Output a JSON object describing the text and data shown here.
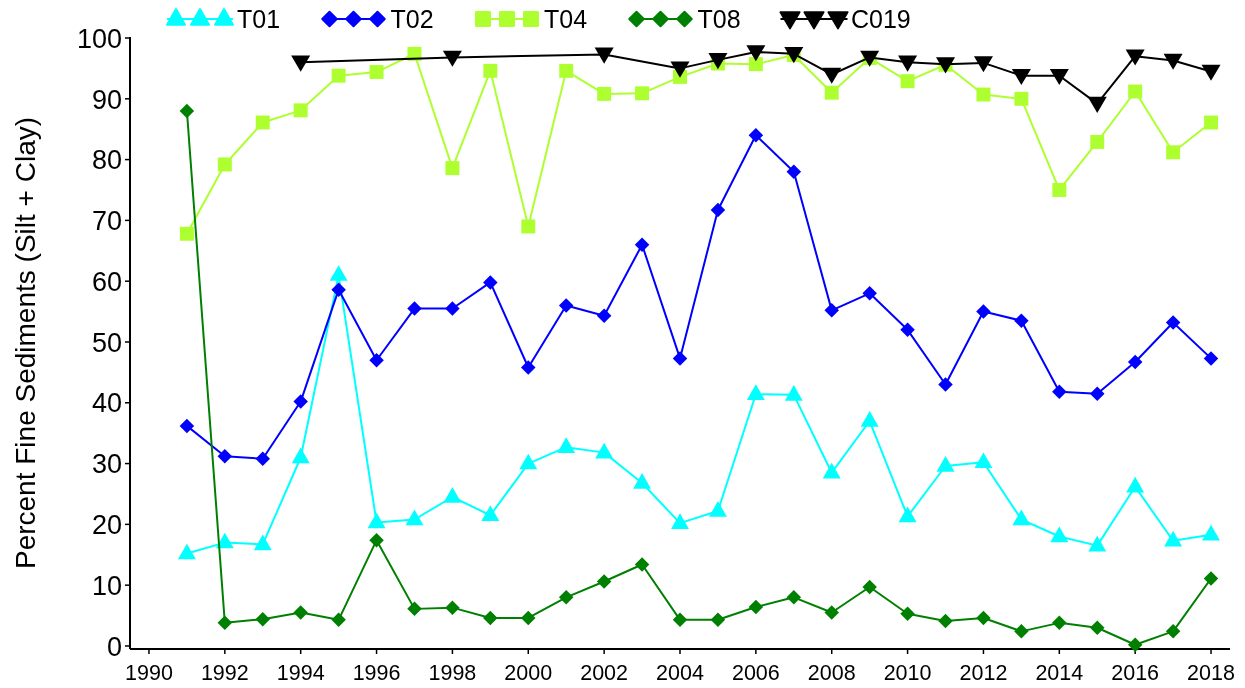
{
  "chart_data": {
    "type": "line",
    "ylabel": "Percent Fine Sediments (Silt + Clay)",
    "x": [
      1991,
      1992,
      1993,
      1994,
      1995,
      1996,
      1997,
      1998,
      1999,
      2000,
      2001,
      2002,
      2003,
      2004,
      2005,
      2006,
      2007,
      2008,
      2009,
      2010,
      2011,
      2012,
      2013,
      2014,
      2015,
      2016,
      2017,
      2018
    ],
    "series": [
      {
        "name": "T01",
        "color": "#00ffff",
        "marker": "triangle",
        "values": [
          15.2,
          17,
          16.7,
          31,
          61,
          20.3,
          20.8,
          24.5,
          21.5,
          30,
          32.7,
          31.8,
          26.8,
          20.2,
          22.2,
          41.4,
          41.3,
          28.5,
          37,
          21.3,
          29.6,
          30.2,
          20.8,
          18,
          16.5,
          26.2,
          17.3,
          18.3
        ]
      },
      {
        "name": "T02",
        "color": "#0000ff",
        "marker": "diamond",
        "values": [
          36.2,
          31.2,
          30.8,
          40.2,
          58.6,
          47,
          55.5,
          55.5,
          59.8,
          45.8,
          56,
          54.3,
          66,
          47.3,
          71.7,
          84,
          78,
          55.2,
          58,
          52,
          43,
          55,
          53.5,
          41.8,
          41.5,
          46.7,
          53.2,
          47.3
        ]
      },
      {
        "name": "T04",
        "color": "#adff2f",
        "marker": "square",
        "values": [
          67.8,
          79.2,
          86.1,
          88.1,
          93.8,
          94.4,
          97.4,
          78.6,
          94.6,
          69,
          94.6,
          90.8,
          90.9,
          93.6,
          95.8,
          95.7,
          97.2,
          91,
          96.7,
          92.9,
          95.6,
          90.7,
          90,
          75,
          82.9,
          91.2,
          81.2,
          86.1
        ]
      },
      {
        "name": "T08",
        "color": "#008000",
        "marker": "diamond",
        "values": [
          88,
          3.8,
          4.4,
          5.5,
          4.3,
          17.4,
          6.1,
          6.3,
          4.6,
          4.6,
          8,
          10.6,
          13.4,
          4.3,
          4.3,
          6.4,
          8,
          5.5,
          9.7,
          5.3,
          4.1,
          4.6,
          2.4,
          3.8,
          3,
          0.2,
          2.4,
          11.1
        ]
      },
      {
        "name": "C019",
        "color": "#000000",
        "marker": "triangle-down",
        "x": [
          1994,
          1998,
          2002,
          2004,
          2005,
          2006,
          2007,
          2008,
          2009,
          2010,
          2011,
          2012,
          2013,
          2014,
          2015,
          2016,
          2017,
          2018
        ],
        "values": [
          96,
          96.8,
          97.3,
          95,
          96.4,
          97.7,
          97.4,
          94,
          96.8,
          96,
          95.7,
          95.9,
          93.8,
          93.8,
          89.2,
          97,
          96.3,
          94.5
        ]
      }
    ],
    "xlim": [
      1989.5,
      2018.5
    ],
    "ylim": [
      -0.5,
      100
    ],
    "xticks": [
      1990,
      1992,
      1994,
      1996,
      1998,
      2000,
      2002,
      2004,
      2006,
      2008,
      2010,
      2012,
      2014,
      2016,
      2018
    ],
    "yticks": [
      0,
      10,
      20,
      30,
      40,
      50,
      60,
      70,
      80,
      90,
      100
    ],
    "legend": "top"
  }
}
